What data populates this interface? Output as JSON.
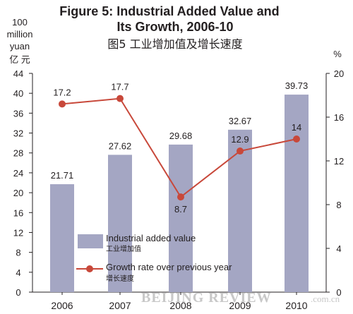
{
  "title": {
    "line1": "Figure 5: Industrial Added Value and",
    "line2": "Its Growth, 2006-10",
    "zh": "图5  工业增加值及增长速度"
  },
  "left_unit": {
    "line1": "100",
    "line2": "million",
    "line3": "yuan",
    "zh": "亿 元"
  },
  "right_unit": "%",
  "watermark": {
    "main": "BEIJING REVIEW",
    "suffix": ".com.cn"
  },
  "colors": {
    "bar": "#a4a6c3",
    "line": "#c8483a",
    "marker": "#c8483a",
    "axis": "#231f20"
  },
  "chart_data": {
    "type": "bar",
    "categories": [
      "2006",
      "2007",
      "2008",
      "2009",
      "2010"
    ],
    "y_left": {
      "ylim": [
        0,
        44
      ],
      "ticks": [
        0,
        4,
        8,
        12,
        16,
        20,
        24,
        28,
        32,
        36,
        40,
        44
      ]
    },
    "y_right": {
      "ylim": [
        0,
        20
      ],
      "ticks": [
        0,
        4,
        8,
        12,
        16,
        20
      ]
    },
    "series": [
      {
        "name": "Industrial added value",
        "name_zh": "工业增加值",
        "type": "bar",
        "axis": "left",
        "values": [
          21.71,
          27.62,
          29.68,
          32.67,
          39.73
        ],
        "labels": [
          "21.71",
          "27.62",
          "29.68",
          "32.67",
          "39.73"
        ]
      },
      {
        "name": "Growth rate over previous year",
        "name_zh": "增长速度",
        "type": "line",
        "axis": "right",
        "values": [
          17.2,
          17.7,
          8.7,
          12.9,
          14
        ],
        "labels": [
          "17.2",
          "17.7",
          "8.7",
          "12.9",
          "14"
        ]
      }
    ],
    "grid": false,
    "legend_position": "bottom-left"
  }
}
